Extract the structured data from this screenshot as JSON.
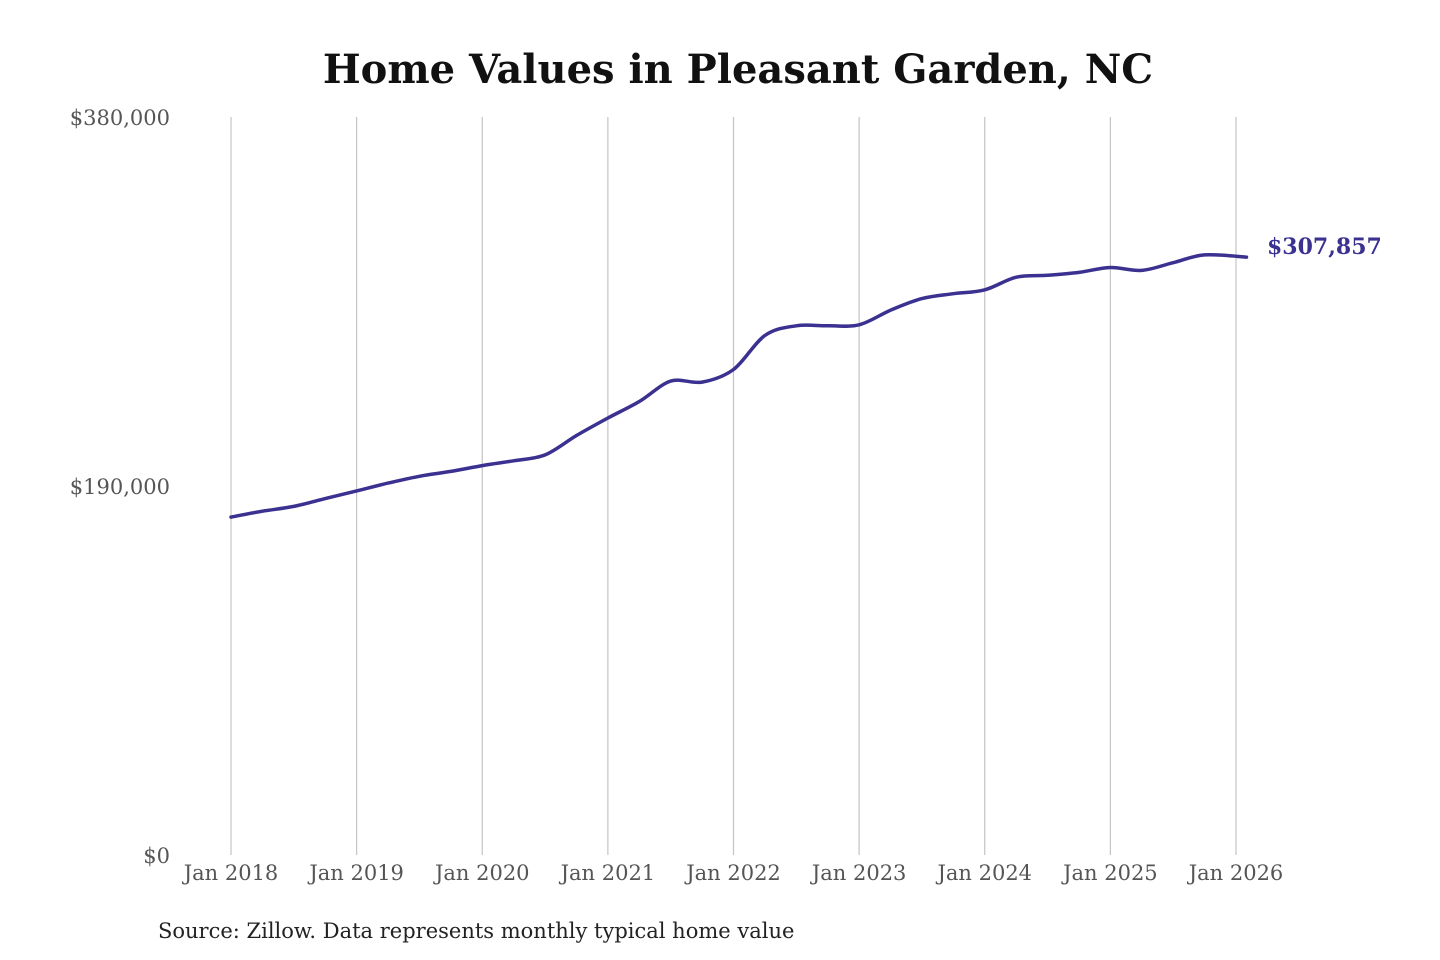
{
  "chart_data": {
    "type": "line",
    "title": "Home Values in Pleasant Garden, NC",
    "source": "Source: Zillow. Data represents monthly typical home value",
    "ylim": [
      0,
      380000
    ],
    "yticks": [
      {
        "value": 0,
        "label": "$0"
      },
      {
        "value": 190000,
        "label": "$190,000"
      },
      {
        "value": 380000,
        "label": "$380,000"
      }
    ],
    "xticks": [
      {
        "value": "2018-01",
        "label": "Jan 2018"
      },
      {
        "value": "2019-01",
        "label": "Jan 2019"
      },
      {
        "value": "2020-01",
        "label": "Jan 2020"
      },
      {
        "value": "2021-01",
        "label": "Jan 2021"
      },
      {
        "value": "2022-01",
        "label": "Jan 2022"
      },
      {
        "value": "2023-01",
        "label": "Jan 2023"
      },
      {
        "value": "2024-01",
        "label": "Jan 2024"
      },
      {
        "value": "2025-01",
        "label": "Jan 2025"
      },
      {
        "value": "2026-01",
        "label": "Jan 2026"
      }
    ],
    "xlim": [
      "2018-01",
      "2026-02"
    ],
    "grid": {
      "vertical": true,
      "horizontal": false
    },
    "line_color": "#3a3190",
    "series": [
      {
        "x": [
          "2018-01",
          "2018-04",
          "2018-07",
          "2018-10",
          "2019-01",
          "2019-04",
          "2019-07",
          "2019-10",
          "2020-01",
          "2020-04",
          "2020-07",
          "2020-10",
          "2021-01",
          "2021-04",
          "2021-07",
          "2021-10",
          "2022-01",
          "2022-04",
          "2022-07",
          "2022-10",
          "2023-01",
          "2023-04",
          "2023-07",
          "2023-10",
          "2024-01",
          "2024-04",
          "2024-07",
          "2024-10",
          "2025-01",
          "2025-04",
          "2025-07",
          "2025-10",
          "2026-02"
        ],
        "values": [
          174000,
          177000,
          179500,
          183500,
          187500,
          191500,
          195000,
          197500,
          200500,
          203000,
          206000,
          216000,
          225000,
          233500,
          244000,
          243500,
          250000,
          267500,
          272500,
          272500,
          273000,
          280500,
          286500,
          289000,
          291000,
          297500,
          298500,
          300000,
          302500,
          301000,
          305000,
          309000,
          307857
        ]
      }
    ],
    "end_label": "$307,857"
  }
}
